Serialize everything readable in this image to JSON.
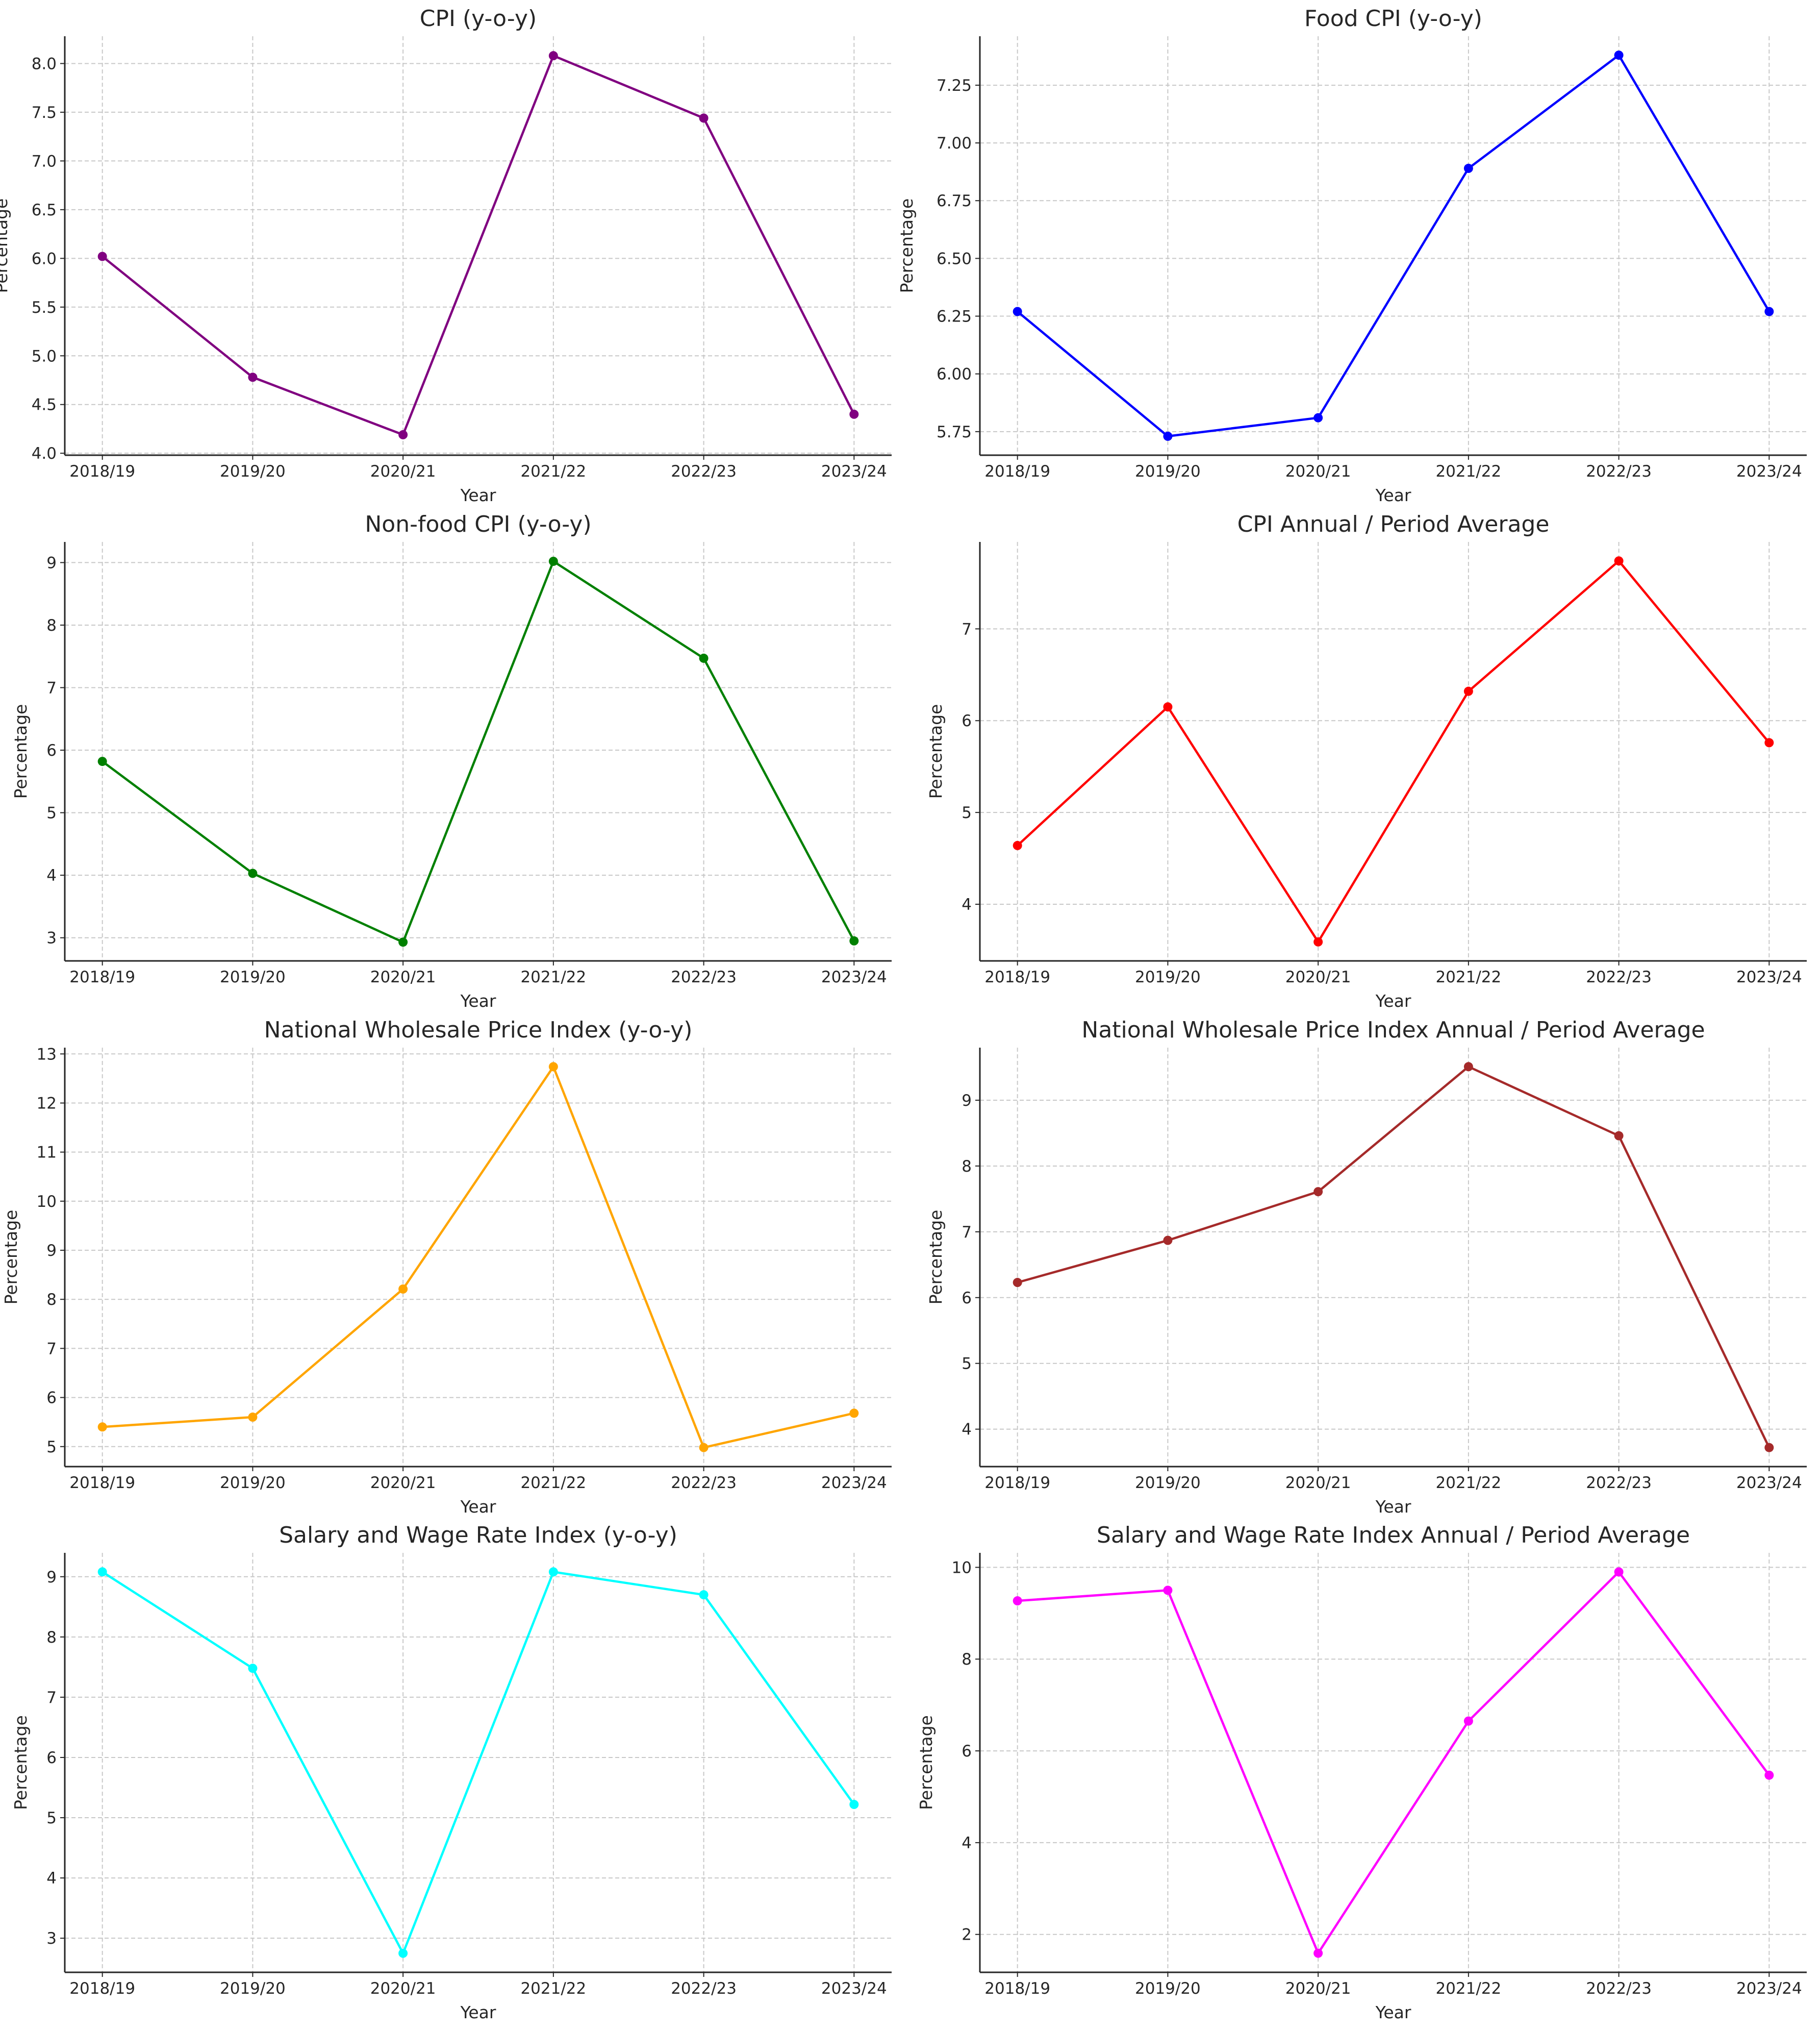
{
  "figure": {
    "layout": "4x2 grid of line charts"
  },
  "chart_data": [
    {
      "type": "line",
      "title": "CPI (y-o-y)",
      "xlabel": "Year",
      "ylabel": "Percentage",
      "categories": [
        "2018/19",
        "2019/20",
        "2020/21",
        "2021/22",
        "2022/23",
        "2023/24"
      ],
      "series": [
        {
          "name": "CPI (y-o-y)",
          "values": [
            6.02,
            4.78,
            4.19,
            8.08,
            7.44,
            4.4
          ],
          "color": "#800080"
        }
      ],
      "ylim": [
        3.98,
        8.28
      ],
      "yticks": [
        4.0,
        4.5,
        5.0,
        5.5,
        6.0,
        6.5,
        7.0,
        7.5,
        8.0
      ],
      "ytick_labels": [
        "4.0",
        "4.5",
        "5.0",
        "5.5",
        "6.0",
        "6.5",
        "7.0",
        "7.5",
        "8.0"
      ],
      "grid": true,
      "marker": "circle"
    },
    {
      "type": "line",
      "title": "Food CPI (y-o-y)",
      "xlabel": "Year",
      "ylabel": "Percentage",
      "categories": [
        "2018/19",
        "2019/20",
        "2020/21",
        "2021/22",
        "2022/23",
        "2023/24"
      ],
      "series": [
        {
          "name": "Food CPI (y-o-y)",
          "values": [
            6.27,
            5.73,
            5.81,
            6.89,
            7.38,
            6.27
          ],
          "color": "#0000ff"
        }
      ],
      "ylim": [
        5.648,
        7.462
      ],
      "yticks": [
        5.75,
        6.0,
        6.25,
        6.5,
        6.75,
        7.0,
        7.25
      ],
      "ytick_labels": [
        "5.75",
        "6.00",
        "6.25",
        "6.50",
        "6.75",
        "7.00",
        "7.25"
      ],
      "grid": true,
      "marker": "circle"
    },
    {
      "type": "line",
      "title": "Non-food CPI (y-o-y)",
      "xlabel": "Year",
      "ylabel": "Percentage",
      "categories": [
        "2018/19",
        "2019/20",
        "2020/21",
        "2021/22",
        "2022/23",
        "2023/24"
      ],
      "series": [
        {
          "name": "Non-food CPI (y-o-y)",
          "values": [
            5.82,
            4.03,
            2.93,
            9.02,
            7.47,
            2.95
          ],
          "color": "#008000"
        }
      ],
      "ylim": [
        2.63,
        9.33
      ],
      "yticks": [
        3,
        4,
        5,
        6,
        7,
        8,
        9
      ],
      "ytick_labels": [
        "3",
        "4",
        "5",
        "6",
        "7",
        "8",
        "9"
      ],
      "grid": true,
      "marker": "circle"
    },
    {
      "type": "line",
      "title": "CPI Annual / Period Average",
      "xlabel": "Year",
      "ylabel": "Percentage",
      "categories": [
        "2018/19",
        "2019/20",
        "2020/21",
        "2021/22",
        "2022/23",
        "2023/24"
      ],
      "series": [
        {
          "name": "CPI Annual / Period Average",
          "values": [
            4.64,
            6.15,
            3.59,
            6.32,
            7.74,
            5.76
          ],
          "color": "#ff0000"
        }
      ],
      "ylim": [
        3.383,
        7.947
      ],
      "yticks": [
        4,
        5,
        6,
        7
      ],
      "ytick_labels": [
        "4",
        "5",
        "6",
        "7"
      ],
      "grid": true,
      "marker": "circle"
    },
    {
      "type": "line",
      "title": "National Wholesale Price Index (y-o-y)",
      "xlabel": "Year",
      "ylabel": "Percentage",
      "categories": [
        "2018/19",
        "2019/20",
        "2020/21",
        "2021/22",
        "2022/23",
        "2023/24"
      ],
      "series": [
        {
          "name": "National Wholesale Price Index (y-o-y)",
          "values": [
            5.4,
            5.6,
            8.21,
            12.74,
            4.98,
            5.68
          ],
          "color": "#ffa500"
        }
      ],
      "ylim": [
        4.592,
        13.128
      ],
      "yticks": [
        5,
        6,
        7,
        8,
        9,
        10,
        11,
        12,
        13
      ],
      "ytick_labels": [
        "5",
        "6",
        "7",
        "8",
        "9",
        "10",
        "11",
        "12",
        "13"
      ],
      "grid": true,
      "marker": "circle"
    },
    {
      "type": "line",
      "title": "National Wholesale Price Index Annual / Period Average",
      "xlabel": "Year",
      "ylabel": "Percentage",
      "categories": [
        "2018/19",
        "2019/20",
        "2020/21",
        "2021/22",
        "2022/23",
        "2023/24"
      ],
      "series": [
        {
          "name": "National Wholesale Price Index Annual / Period Average",
          "values": [
            6.23,
            6.87,
            7.61,
            9.51,
            8.46,
            3.72
          ],
          "color": "#a52a2a"
        }
      ],
      "ylim": [
        3.431,
        9.799
      ],
      "yticks": [
        4,
        5,
        6,
        7,
        8,
        9
      ],
      "ytick_labels": [
        "4",
        "5",
        "6",
        "7",
        "8",
        "9"
      ],
      "grid": true,
      "marker": "circle"
    },
    {
      "type": "line",
      "title": "Salary and Wage Rate Index (y-o-y)",
      "xlabel": "Year",
      "ylabel": "Percentage",
      "categories": [
        "2018/19",
        "2019/20",
        "2020/21",
        "2021/22",
        "2022/23",
        "2023/24"
      ],
      "series": [
        {
          "name": "Salary and Wage Rate Index (y-o-y)",
          "values": [
            9.08,
            7.48,
            2.75,
            9.08,
            8.7,
            5.22
          ],
          "color": "#00ffff"
        }
      ],
      "ylim": [
        2.434,
        9.396
      ],
      "yticks": [
        3,
        4,
        5,
        6,
        7,
        8,
        9
      ],
      "ytick_labels": [
        "3",
        "4",
        "5",
        "6",
        "7",
        "8",
        "9"
      ],
      "grid": true,
      "marker": "circle"
    },
    {
      "type": "line",
      "title": "Salary and Wage Rate Index Annual / Period Average",
      "xlabel": "Year",
      "ylabel": "Percentage",
      "categories": [
        "2018/19",
        "2019/20",
        "2020/21",
        "2021/22",
        "2022/23",
        "2023/24"
      ],
      "series": [
        {
          "name": "Salary and Wage Rate Index Annual / Period Average",
          "values": [
            9.27,
            9.5,
            1.59,
            6.65,
            9.9,
            5.47
          ],
          "color": "#ff00ff"
        }
      ],
      "ylim": [
        1.174,
        10.316
      ],
      "yticks": [
        2,
        4,
        6,
        8,
        10
      ],
      "ytick_labels": [
        "2",
        "4",
        "6",
        "8",
        "10"
      ],
      "grid": true,
      "marker": "circle"
    }
  ]
}
